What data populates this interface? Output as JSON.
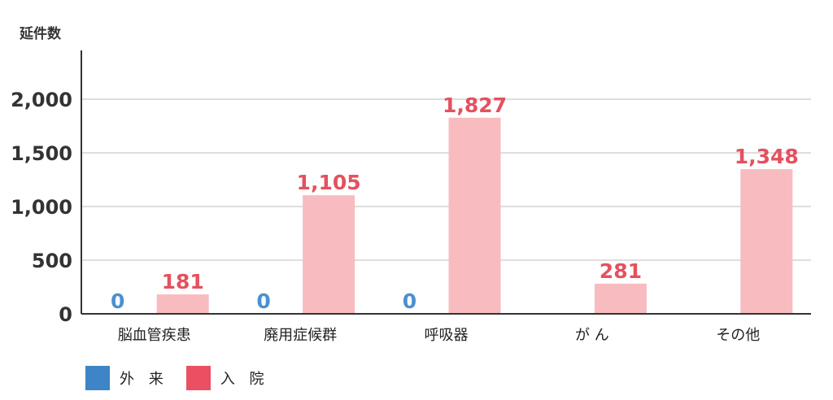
{
  "chart_data": {
    "type": "bar",
    "ylabel": "延件数",
    "categories": [
      "脳血管疾患",
      "廃用症候群",
      "呼吸器",
      "が ん",
      "その他"
    ],
    "yticks": [
      "0",
      "500",
      "1,000",
      "1,500",
      "2,000"
    ],
    "ylim": [
      0,
      2000
    ],
    "grid": true,
    "legend_position": "bottom-left",
    "series": [
      {
        "name": "外 来",
        "color": "#3d85c6",
        "label_color": "#4a90d0",
        "values": [
          0,
          0,
          0,
          null,
          null
        ],
        "labels": [
          "0",
          "0",
          "0",
          "",
          ""
        ]
      },
      {
        "name": "入 院",
        "color": "#f8bcc0",
        "legend_color": "#ea5062",
        "label_color": "#e4515f",
        "values": [
          181,
          1105,
          1827,
          281,
          1348
        ],
        "labels": [
          "181",
          "1,105",
          "1,827",
          "281",
          "1,348"
        ]
      }
    ]
  }
}
